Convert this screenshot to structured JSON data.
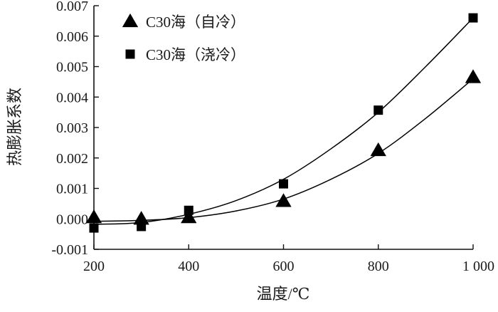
{
  "chart_data": {
    "type": "scatter",
    "xlabel": "温度/℃",
    "ylabel": "热膨胀系数",
    "xlim": [
      200,
      1000
    ],
    "ylim": [
      -0.001,
      0.007
    ],
    "x_ticks": [
      {
        "value": 200,
        "label": "200"
      },
      {
        "value": 400,
        "label": "400"
      },
      {
        "value": 600,
        "label": "600"
      },
      {
        "value": 800,
        "label": "800"
      },
      {
        "value": 1000,
        "label": "1 000"
      }
    ],
    "y_ticks": [
      {
        "value": -0.001,
        "label": "-0.001"
      },
      {
        "value": 0.0,
        "label": "0.000"
      },
      {
        "value": 0.001,
        "label": "0.001"
      },
      {
        "value": 0.002,
        "label": "0.002"
      },
      {
        "value": 0.003,
        "label": "0.003"
      },
      {
        "value": 0.004,
        "label": "0.004"
      },
      {
        "value": 0.005,
        "label": "0.005"
      },
      {
        "value": 0.006,
        "label": "0.006"
      },
      {
        "value": 0.007,
        "label": "0.007"
      }
    ],
    "grid": false,
    "legend_position": "top-left",
    "series": [
      {
        "name": "C30海（自冷）",
        "marker": "triangle",
        "color": "#000000",
        "x": [
          200,
          300,
          400,
          600,
          800,
          1000
        ],
        "y": [
          5e-05,
          0.0,
          5e-05,
          0.00058,
          0.00225,
          0.00465
        ],
        "fit": {
          "x": [
            200,
            300,
            400,
            500,
            600,
            700,
            800,
            900,
            1000
          ],
          "y": [
            -8e-05,
            -5e-05,
            4e-05,
            0.00026,
            0.00065,
            0.0013,
            0.00215,
            0.0033,
            0.0046
          ]
        }
      },
      {
        "name": "C30海（浇冷）",
        "marker": "square",
        "color": "#000000",
        "x": [
          200,
          300,
          400,
          600,
          800,
          1000
        ],
        "y": [
          -0.0003,
          -0.00025,
          0.00028,
          0.00115,
          0.00357,
          0.0066
        ],
        "fit": {
          "x": [
            200,
            300,
            400,
            500,
            600,
            700,
            800,
            900,
            1000
          ],
          "y": [
            -0.00018,
            -0.00012,
            0.00015,
            0.0006,
            0.0013,
            0.0023,
            0.0035,
            0.005,
            0.0066
          ]
        }
      }
    ]
  }
}
